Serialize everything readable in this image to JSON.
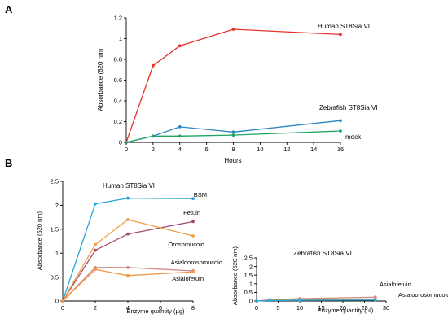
{
  "panels": [
    {
      "label": "A"
    },
    {
      "label": "B"
    }
  ],
  "chart_data": [
    {
      "type": "line",
      "panel": "A",
      "title": "",
      "xlabel": "Hours",
      "ylabel": "Absorbance (620 nm)",
      "xlim": [
        0,
        16
      ],
      "ylim": [
        0,
        1.2
      ],
      "x_ticks": [
        0,
        2,
        4,
        6,
        8,
        10,
        12,
        14,
        16
      ],
      "y_ticks": [
        0,
        0.2,
        0.4,
        0.6,
        0.8,
        1,
        1.2
      ],
      "y_tick_labels": [
        "0",
        "0.2",
        "0.4",
        "0.6",
        "0.8",
        "1",
        "1.2"
      ],
      "grid": false,
      "series": [
        {
          "name": "Human ST8Sia VI",
          "color": "#e8322b",
          "x": [
            0,
            2,
            4,
            8,
            16
          ],
          "y": [
            0,
            0.74,
            0.93,
            1.09,
            1.04
          ]
        },
        {
          "name": "Zebrafish ST8Sia VI",
          "color": "#2e86c1",
          "x": [
            0,
            2,
            4,
            8,
            16
          ],
          "y": [
            0,
            0.06,
            0.15,
            0.1,
            0.21
          ]
        },
        {
          "name": "mock",
          "color": "#1fa463",
          "x": [
            0,
            2,
            4,
            8,
            16
          ],
          "y": [
            0,
            0.06,
            0.06,
            0.07,
            0.11
          ]
        }
      ]
    },
    {
      "type": "line",
      "panel": "B-left",
      "title": "Human ST8Sia VI",
      "xlabel": "Enzyme quantity  (µg)",
      "ylabel": "Absorbance (620 nm)",
      "xlim": [
        0,
        8
      ],
      "ylim": [
        0,
        2.5
      ],
      "x_ticks": [
        0,
        2,
        4,
        6,
        8
      ],
      "y_ticks": [
        0,
        0.5,
        1,
        1.5,
        2,
        2.5
      ],
      "y_tick_labels": [
        "0",
        "0.5",
        "1",
        "1.5",
        "2",
        "2.5"
      ],
      "grid": false,
      "series": [
        {
          "name": "BSM",
          "color": "#2aa6d6",
          "x": [
            0,
            2,
            4,
            8
          ],
          "y": [
            0,
            2.03,
            2.15,
            2.14
          ]
        },
        {
          "name": "Fetuin",
          "color": "#a24a6e",
          "x": [
            0,
            2,
            4,
            8
          ],
          "y": [
            0,
            1.06,
            1.4,
            1.66
          ]
        },
        {
          "name": "Orosomucoid",
          "color": "#f0a048",
          "x": [
            0,
            2,
            4,
            8
          ],
          "y": [
            0,
            1.18,
            1.7,
            1.36
          ]
        },
        {
          "name": "Asialoorosomucoid",
          "color": "#d08a86",
          "x": [
            0,
            2,
            4,
            8
          ],
          "y": [
            0,
            0.7,
            0.7,
            0.63
          ]
        },
        {
          "name": "Asialofetuin",
          "color": "#f09a48",
          "x": [
            0,
            2,
            4,
            8
          ],
          "y": [
            0,
            0.66,
            0.53,
            0.61
          ]
        }
      ]
    },
    {
      "type": "line",
      "panel": "B-right",
      "title": "Zebrafish ST8Sia VI",
      "xlabel": "Enzyme quantity  (µl)",
      "ylabel": "Absorbance (620 nm)",
      "xlim": [
        0,
        30
      ],
      "ylim": [
        0,
        2.5
      ],
      "x_ticks": [
        0,
        5,
        10,
        15,
        20,
        25,
        30
      ],
      "y_ticks": [
        0,
        0.5,
        1,
        1.5,
        2,
        2.5
      ],
      "y_tick_labels": [
        "0",
        "0.5",
        "1",
        "1.5",
        "2",
        "2.5"
      ],
      "grid": false,
      "series": [
        {
          "name": "Asialofetuin",
          "color": "#d08a86",
          "x": [
            0,
            3,
            10,
            27.5
          ],
          "y": [
            0,
            0.07,
            0.14,
            0.22
          ]
        },
        {
          "name": "Asialoorosomucoid",
          "color": "#c09a5a",
          "x": [
            0,
            3,
            10,
            27.5
          ],
          "y": [
            0,
            0.05,
            0.08,
            0.1
          ]
        },
        {
          "name": "",
          "color": "#2aa6d6",
          "x": [
            0,
            3,
            10,
            27.5
          ],
          "y": [
            0,
            0.03,
            0.04,
            0.05
          ]
        }
      ]
    }
  ]
}
